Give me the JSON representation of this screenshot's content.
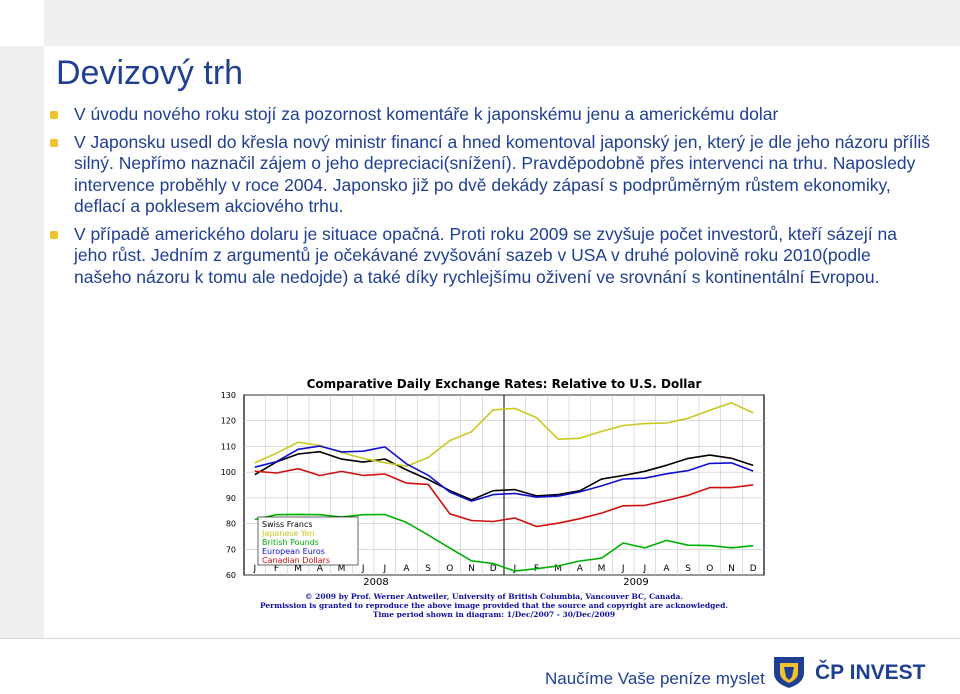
{
  "title": "Devizový trh",
  "bullets": [
    "V úvodu nového roku stojí za pozornost komentáře k japonskému jenu a americkému dolar",
    "V Japonsku usedl do křesla nový ministr financí a hned komentoval japonský jen, který je dle jeho názoru příliš silný. Nepřímo naznačil zájem o jeho depreciaci(snížení). Pravděpodobně přes intervenci na trhu. Naposledy intervence proběhly v roce 2004. Japonsko již po dvě dekády zápasí s podprůměrným růstem ekonomiky, deflací a poklesem akciového trhu.",
    "V případě amerického dolaru je situace opačná. Proti roku 2009 se zvyšuje počet investorů, kteří sázejí na jeho růst. Jedním z argumentů je očekávané zvyšování sazeb v USA v druhé polovině roku 2010(podle našeho názoru k tomu ale nedojde) a také díky rychlejšímu oživení ve srovnání s kontinentální Evropou."
  ],
  "footer": {
    "slogan": "Naučíme Vaše peníze myslet",
    "brand": "ČP INVEST",
    "logo_icon": "lion-shield-icon",
    "bullet_color": "#f2c12e",
    "text_color": "#1f3f93"
  },
  "chart_data": {
    "type": "line",
    "title": "Comparative Daily Exchange Rates: Relative to U.S. Dollar",
    "xlabel": "",
    "ylabel": "",
    "ylim": [
      60,
      130
    ],
    "yticks": [
      60,
      70,
      80,
      90,
      100,
      110,
      120,
      130
    ],
    "x": [
      "J",
      "F",
      "M",
      "A",
      "M",
      "J",
      "J",
      "A",
      "S",
      "O",
      "N",
      "D",
      "J",
      "F",
      "M",
      "A",
      "M",
      "J",
      "J",
      "A",
      "S",
      "O",
      "N",
      "D"
    ],
    "year_labels": [
      "2008",
      "2009"
    ],
    "grid": true,
    "legend_position": "bottom-left",
    "series": [
      {
        "name": "Swiss Francs",
        "color": "#000000",
        "values": [
          99,
          104,
          107,
          108,
          105,
          104,
          105,
          101,
          97,
          93,
          89,
          93,
          93,
          91,
          91,
          93,
          97,
          99,
          100,
          103,
          105,
          107,
          105,
          103
        ]
      },
      {
        "name": "Japanese Yen",
        "color": "#c8c820",
        "values": [
          104,
          107,
          112,
          110,
          108,
          105,
          104,
          102,
          106,
          112,
          116,
          124,
          125,
          121,
          113,
          113,
          116,
          118,
          119,
          119,
          121,
          124,
          127,
          123
        ]
      },
      {
        "name": "British Pounds",
        "color": "#00b000",
        "values": [
          82,
          83,
          84,
          83,
          83,
          83,
          84,
          80,
          76,
          70,
          66,
          64,
          62,
          62,
          64,
          65,
          67,
          72,
          71,
          73,
          72,
          71,
          71,
          71
        ]
      },
      {
        "name": "European Euros",
        "color": "#1010d0",
        "values": [
          102,
          104,
          109,
          110,
          108,
          108,
          110,
          103,
          99,
          92,
          89,
          91,
          92,
          90,
          91,
          92,
          95,
          97,
          98,
          99,
          101,
          103,
          104,
          100
        ]
      },
      {
        "name": "Canadian Dollars",
        "color": "#d01010",
        "values": [
          100,
          100,
          101,
          99,
          100,
          99,
          99,
          96,
          95,
          84,
          81,
          81,
          82,
          79,
          80,
          82,
          84,
          87,
          87,
          89,
          91,
          94,
          94,
          95
        ]
      }
    ],
    "credits": [
      "© 2009 by Prof. Werner Antweiler, University of British Columbia, Vancouver BC, Canada.",
      "Permission is granted to reproduce the above image provided that the source and copyright are acknowledged.",
      "Time period shown in diagram: 1/Dec/2007 - 30/Dec/2009"
    ]
  }
}
